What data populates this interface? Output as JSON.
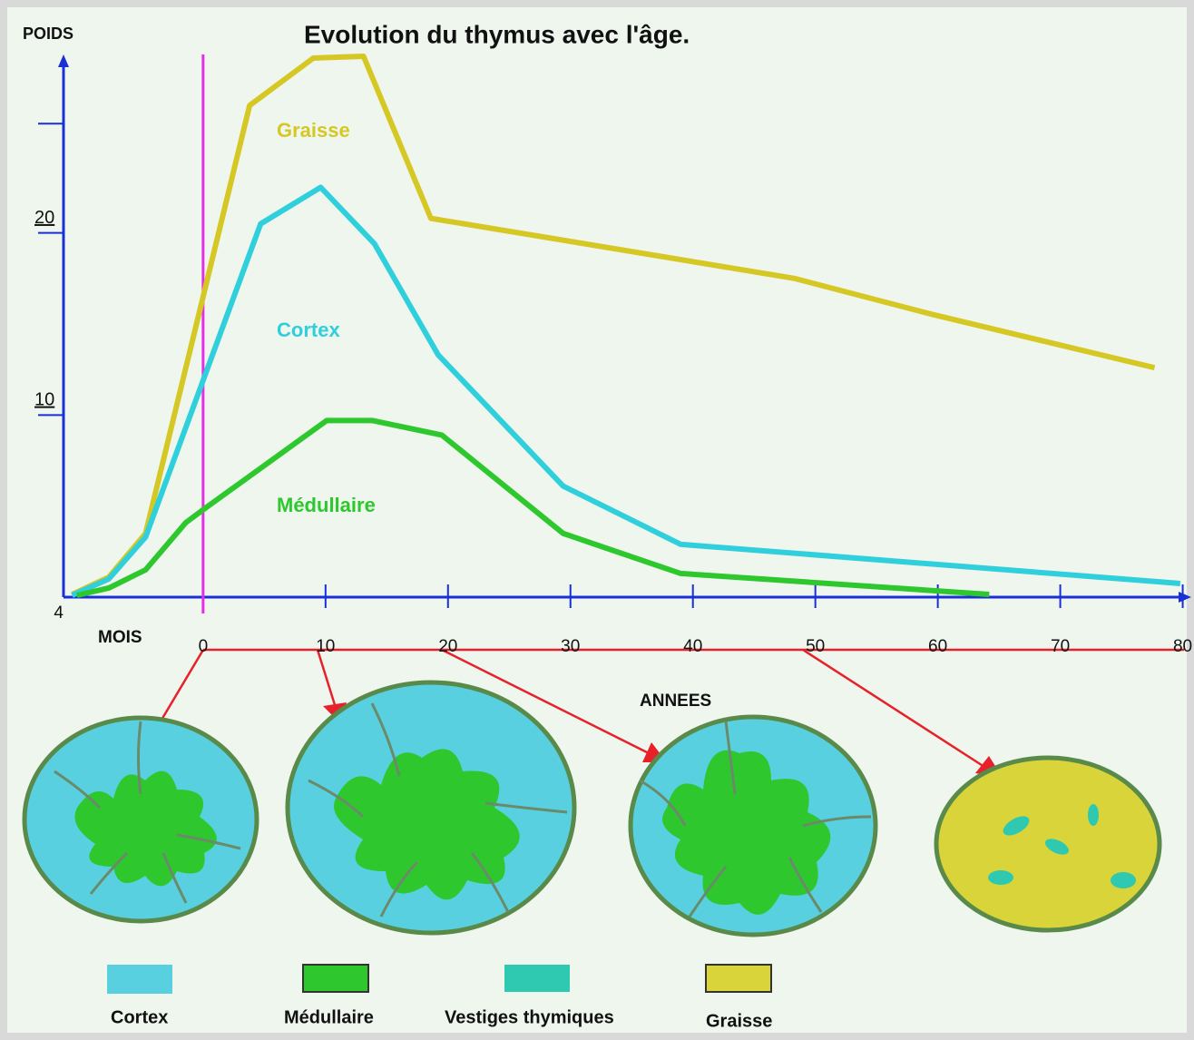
{
  "chart_data": {
    "type": "line",
    "title": "Evolution du thymus avec l'âge.",
    "y_label": "POIDS",
    "x_label_months": "MOIS",
    "x_label_years": "ANNEES",
    "xlim": [
      -11.4,
      80.7
    ],
    "ylim": [
      0,
      29.8
    ],
    "xticks": [
      {
        "value": -11.4,
        "label": "4"
      },
      0,
      10,
      20,
      30,
      40,
      50,
      60,
      70,
      80
    ],
    "yticks": [
      10,
      20,
      {
        "value": 26,
        "label": null
      }
    ],
    "series": [
      {
        "name": "Graisse",
        "color": "#d6c824",
        "x": [
          -10.7,
          -7.7,
          -4.7,
          3.8,
          9.0,
          13.1,
          18.6,
          48.3,
          59.7,
          77.7
        ],
        "values": [
          0.15,
          1.1,
          3.5,
          27.0,
          29.6,
          29.7,
          20.8,
          17.5,
          15.5,
          12.6
        ]
      },
      {
        "name": "Cortex",
        "color": "#2fcfdc",
        "x": [
          -10.7,
          -7.7,
          -4.7,
          4.7,
          9.6,
          14.0,
          19.2,
          29.4,
          39.0,
          79.8
        ],
        "values": [
          0.1,
          1.0,
          3.3,
          20.5,
          22.5,
          19.4,
          13.3,
          6.1,
          2.9,
          0.75
        ]
      },
      {
        "name": "Médullaire",
        "color": "#2ec82e",
        "x": [
          -10.3,
          -7.7,
          -4.7,
          -1.4,
          0,
          10.1,
          13.8,
          19.5,
          29.4,
          39.0,
          64.2
        ],
        "values": [
          0.1,
          0.5,
          1.5,
          4.1,
          4.8,
          9.7,
          9.7,
          8.9,
          3.5,
          1.3,
          0.15
        ]
      }
    ]
  },
  "legend": {
    "items": [
      "Cortex",
      "Médullaire",
      "Vestiges thymiques",
      "Graisse"
    ]
  }
}
